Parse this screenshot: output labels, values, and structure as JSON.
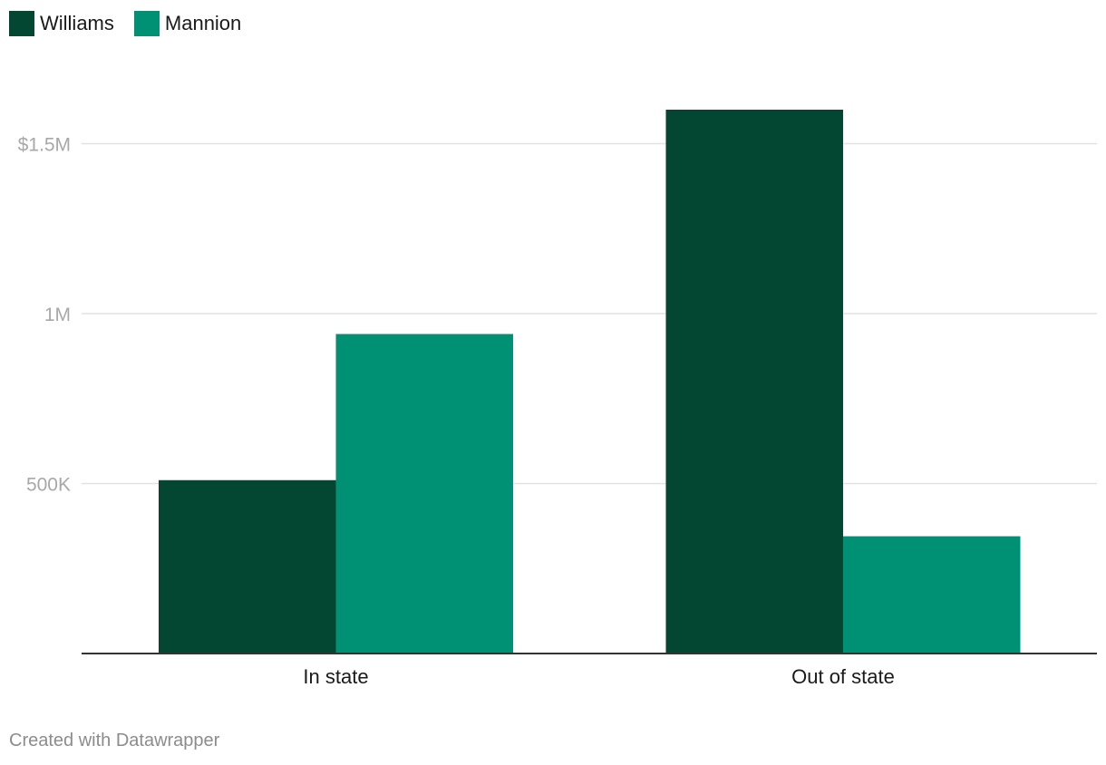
{
  "chart_data": {
    "type": "bar",
    "categories": [
      "In state",
      "Out of state"
    ],
    "series": [
      {
        "name": "Williams",
        "color": "#034632",
        "values": [
          510000,
          1600000
        ]
      },
      {
        "name": "Mannion",
        "color": "#009175",
        "values": [
          940000,
          345000
        ]
      }
    ],
    "y_ticks": [
      {
        "value": 500000,
        "label": "500K"
      },
      {
        "value": 1000000,
        "label": "1M"
      },
      {
        "value": 1500000,
        "label": "$1.5M"
      }
    ],
    "ylim": [
      0,
      1650000
    ],
    "grid": true,
    "legend_position": "top-left",
    "title": "",
    "xlabel": "",
    "ylabel": ""
  },
  "footer": {
    "credit": "Created with Datawrapper"
  }
}
